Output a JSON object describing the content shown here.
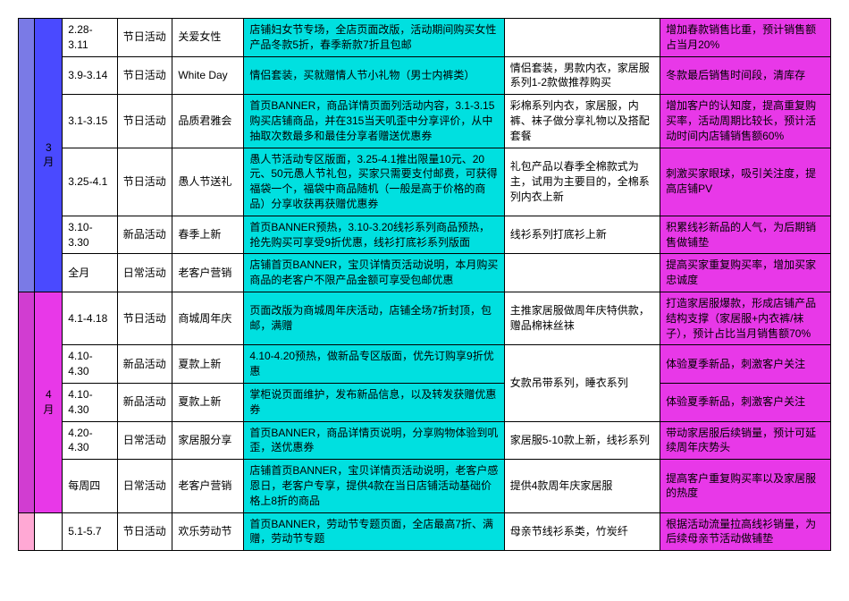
{
  "colors": {
    "mar_a": "#7a7ae6",
    "mar_b": "#4a4aff",
    "apr_a": "#d13dd1",
    "apr_b": "#e838e8",
    "may_a": "#ffa8d4",
    "cyan": "#00e0e0",
    "magenta": "#e838e8",
    "white": "#ffffff"
  },
  "rows": [
    {
      "date": "2.28-3.11",
      "type": "节日活动",
      "name": "关爱女性",
      "desc": "店铺妇女节专场，全店页面改版，活动期间购买女性产品冬款5折，春季新款7折且包邮",
      "prod": "",
      "goal": "增加春款销售比重，预计销售额占当月20%"
    },
    {
      "date": "3.9-3.14",
      "type": "节日活动",
      "name": "White Day",
      "desc": "情侣套装，买就赠情人节小礼物（男士内裤类）",
      "prod": "情侣套装，男款内衣，家居服系列1-2款做推荐购买",
      "goal": "冬款最后销售时间段，清库存"
    },
    {
      "date": "3.1-3.15",
      "type": "节日活动",
      "name": "品质君雅会",
      "desc": "首页BANNER，商品详情页面列活动内容，3.1-3.15购买店铺商品，并在315当天叽歪中分享评价，从中抽取次数最多和最佳分享者赠送优惠券",
      "prod": "彩棉系列内衣，家居服，内裤、袜子做分享礼物以及搭配套餐",
      "goal": "增加客户的认知度，提高重复购买率，活动周期比较长，预计活动时间内店铺销售额60%"
    },
    {
      "date": "3.25-4.1",
      "type": "节日活动",
      "name": "愚人节送礼",
      "desc": "愚人节活动专区版面，3.25-4.1推出限量10元、20元、50元愚人节礼包，买家只需要支付邮费，可获得福袋一个，福袋中商品随机（一般是高于价格的商品）分享收获再获赠优惠券",
      "prod": "礼包产品以春季全棉款式为主，试用为主要目的，全棉系列内衣上新",
      "goal": "刺激买家眼球，吸引关注度，提高店铺PV"
    },
    {
      "date": "3.10-3.30",
      "type": "新品活动",
      "name": "春季上新",
      "desc": "首页BANNER预热，3.10-3.20线衫系列商品预热，抢先购买可享受9折优惠，线衫打底衫系列版面",
      "prod": "线衫系列打底衫上新",
      "goal": "积累线衫新品的人气，为后期销售做铺垫"
    },
    {
      "date": "全月",
      "type": "日常活动",
      "name": "老客户营销",
      "desc": "店铺首页BANNER，宝贝详情页活动说明，本月购买商品的老客户不限产品金额可享受包邮优惠",
      "prod": "",
      "goal": "提高买家重复购买率，增加买家忠诚度"
    },
    {
      "date": "4.1-4.18",
      "type": "节日活动",
      "name": "商城周年庆",
      "desc": "页面改版为商城周年庆活动，店铺全场7折封顶，包邮，满赠",
      "prod": "主推家居服做周年庆特供款，赠品棉袜丝袜",
      "goal": "打造家居服爆款，形成店铺产品结构支撑（家居服+内衣裤/袜子），预计占比当月销售额70%"
    },
    {
      "date": "4.10-4.30",
      "type": "新品活动",
      "name": "夏款上新",
      "desc": "4.10-4.20预热，做新品专区版面，优先订购享9折优惠",
      "prod": "女款吊带系列，睡衣系列",
      "goal": "体验夏季新品，刺激客户关注"
    },
    {
      "date": "4.10-4.30",
      "type": "新品活动",
      "name": "夏款上新",
      "desc": "掌柜说页面维护，发布新品信息，以及转发获赠优惠券",
      "prod": "",
      "goal": "体验夏季新品，刺激客户关注"
    },
    {
      "date": "4.20-4.30",
      "type": "日常活动",
      "name": "家居服分享",
      "desc": "首页BANNER，商品详情页说明，分享购物体验到叽歪，送优惠券",
      "prod": "家居服5-10款上新，线衫系列",
      "goal": "带动家居服后续销量，预计可延续周年庆势头"
    },
    {
      "date": "每周四",
      "type": "日常活动",
      "name": "老客户营销",
      "desc": "店铺首页BANNER，宝贝详情页活动说明，老客户感恩日，老客户专享，提供4款在当日店铺活动基础价格上8折的商品",
      "prod": "提供4款周年庆家居服",
      "goal": "提高客户重复购买率以及家居服的热度"
    },
    {
      "date": "5.1-5.7",
      "type": "节日活动",
      "name": "欢乐劳动节",
      "desc": "首页BANNER，劳动节专题页面，全店最高7折、满赠，劳动节专题",
      "prod": "母亲节线衫系类，竹炭纤",
      "goal": "根据活动流量拉高线衫销量，为后续母亲节活动做铺垫"
    }
  ],
  "months": [
    {
      "label": "3月",
      "a_color": "#7a7ae6",
      "b_color": "#4a4aff",
      "count": 6
    },
    {
      "label": "4月",
      "a_color": "#d13dd1",
      "b_color": "#e838e8",
      "count": 5
    },
    {
      "label": "",
      "a_color": "#ffa8d4",
      "b_color": "#ffffff",
      "count": 1
    }
  ]
}
